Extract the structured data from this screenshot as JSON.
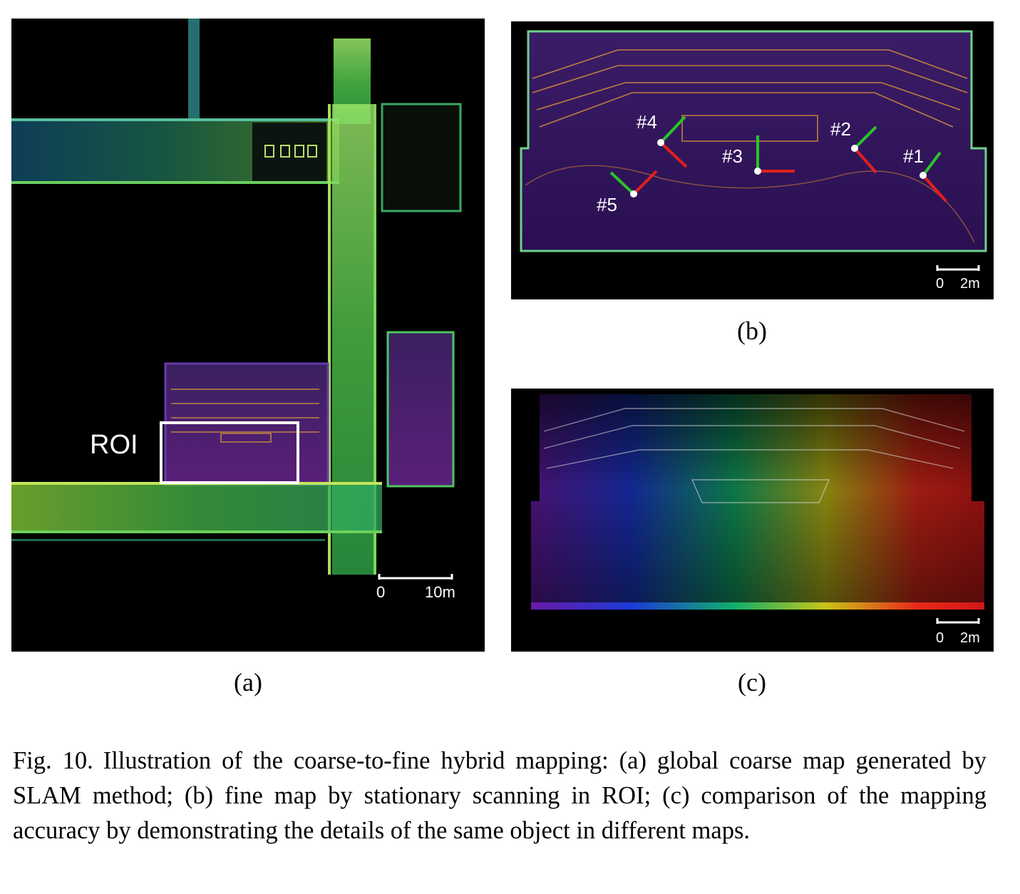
{
  "figure": {
    "panel_a": {
      "roi_label": "ROI",
      "scale_start": "0",
      "scale_end": "10m",
      "sublabel": "(a)"
    },
    "panel_b": {
      "markers": [
        "#1",
        "#2",
        "#3",
        "#4",
        "#5"
      ],
      "scale_start": "0",
      "scale_end": "2m",
      "sublabel": "(b)"
    },
    "panel_c": {
      "scale_start": "0",
      "scale_end": "2m",
      "sublabel": "(c)"
    },
    "caption": {
      "number": "Fig. 10.",
      "text": "Illustration of the coarse-to-fine hybrid mapping: (a) global coarse map generated by SLAM method; (b) fine map by stationary scanning in ROI; (c) comparison of the mapping accuracy by demonstrating the details of the same object in different maps."
    },
    "colors": {
      "axis_x": "#e0201c",
      "axis_y": "#2bc42b",
      "roi_box": "#ffffff"
    }
  }
}
